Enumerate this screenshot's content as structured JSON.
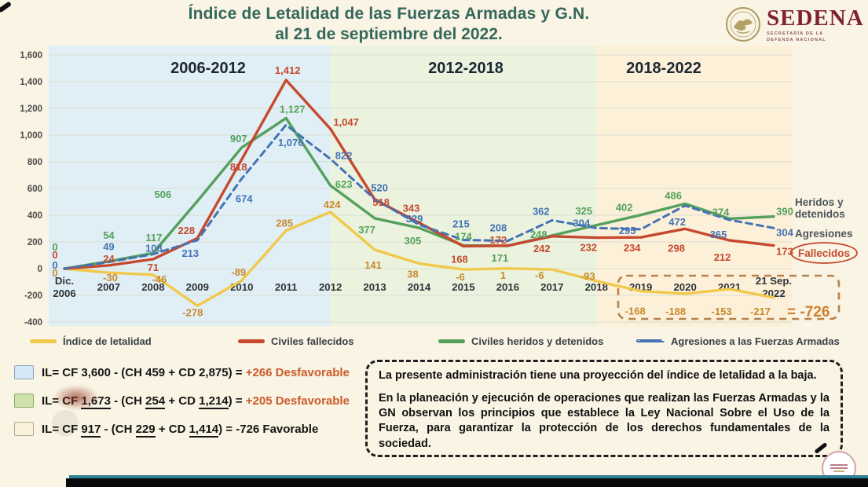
{
  "header": {
    "title_line1": "Índice de Letalidad de las Fuerzas Armadas y G.N.",
    "title_line2": "al 21 de septiembre del 2022.",
    "agency": {
      "name": "SEDENA",
      "subtitle_line1": "SECRETARÍA DE LA",
      "subtitle_line2": "DEFENSA NACIONAL"
    }
  },
  "chart_data": {
    "type": "line",
    "title": "Índice de Letalidad de las Fuerzas Armadas y G.N. al 21 de septiembre del 2022.",
    "x_labels": [
      [
        "Dic.",
        "2006"
      ],
      [
        "2007"
      ],
      [
        "2008"
      ],
      [
        "2009"
      ],
      [
        "2010"
      ],
      [
        "2011"
      ],
      [
        "2012"
      ],
      [
        "2013"
      ],
      [
        "2014"
      ],
      [
        "2015"
      ],
      [
        "2016"
      ],
      [
        "2017"
      ],
      [
        "2018"
      ],
      [
        "2019"
      ],
      [
        "2020"
      ],
      [
        "2021"
      ],
      [
        "21 Sep.",
        "2022"
      ]
    ],
    "ylim": [
      -400,
      1600
    ],
    "ytick_step": 200,
    "grid": true,
    "legend_position": "bottom",
    "periods": [
      {
        "label": "2006-2012",
        "color": "#e0eff5",
        "span": [
          0,
          6
        ]
      },
      {
        "label": "2012-2018",
        "color": "#ebf3df",
        "span": [
          6,
          12
        ]
      },
      {
        "label": "2018-2022",
        "color": "#fdf0d9",
        "span": [
          12,
          17
        ]
      }
    ],
    "series": [
      {
        "name": "Índice de letalidad",
        "color": "#f0c94c",
        "label_color": "#c9892e",
        "dashed": false,
        "values": [
          0,
          -30,
          -46,
          -278,
          -89,
          285,
          424,
          141,
          38,
          -6,
          1,
          -6,
          -93,
          -168,
          -188,
          -153,
          -217
        ]
      },
      {
        "name": "Civiles fallecidos",
        "color": "#c5492e",
        "label_color": "#c5492e",
        "dashed": false,
        "values": [
          0,
          24,
          71,
          228,
          818,
          1412,
          1047,
          518,
          343,
          168,
          172,
          242,
          232,
          234,
          298,
          212,
          173
        ]
      },
      {
        "name": "Civiles heridos y detenidos",
        "color": "#55a05c",
        "label_color": "#55a05c",
        "dashed": false,
        "values": [
          0,
          54,
          117,
          506,
          907,
          1127,
          623,
          377,
          305,
          174,
          171,
          248,
          325,
          402,
          486,
          374,
          390
        ]
      },
      {
        "name": "Agresiones a las Fuerzas Armadas",
        "color": "#4472b4",
        "label_color": "#4472b4",
        "dashed": true,
        "values": [
          0,
          49,
          108,
          213,
          674,
          1076,
          822,
          520,
          329,
          215,
          208,
          362,
          304,
          295,
          472,
          365,
          304
        ]
      }
    ],
    "right_annotations": [
      {
        "lines": [
          "Heridos y",
          "detenidos"
        ],
        "color": "#4f565c",
        "oval": false
      },
      {
        "lines": [
          "Agresiones"
        ],
        "color": "#4f565c",
        "oval": false
      },
      {
        "lines": [
          "Fallecidos"
        ],
        "color": "#c5492e",
        "oval": true
      }
    ],
    "summary_box": {
      "total_label": "= -726"
    }
  },
  "formulas": [
    {
      "swatch": "#d4e9f5",
      "swatch_border": "#85a7ba",
      "segments": [
        {
          "t": "IL= CF 3,600 - (CH 459 + CD 2,875) = "
        },
        {
          "t": "+266",
          "c": "accent"
        },
        {
          "t": "  Desfavorable",
          "c": "accent"
        }
      ]
    },
    {
      "swatch": "#cfe2ab",
      "swatch_border": "#8fa968",
      "segments": [
        {
          "t": "IL= CF "
        },
        {
          "t": "1,673",
          "u": true
        },
        {
          "t": " - (CH "
        },
        {
          "t": "254",
          "u": true
        },
        {
          "t": " + CD "
        },
        {
          "t": "1,214",
          "u": true
        },
        {
          "t": ") = "
        },
        {
          "t": "+205",
          "c": "accent"
        },
        {
          "t": "  Desfavorable",
          "c": "accent"
        }
      ]
    },
    {
      "swatch": "#f9f1dc",
      "swatch_border": "#b7ab8a",
      "segments": [
        {
          "t": "IL= CF "
        },
        {
          "t": "917",
          "u": true
        },
        {
          "t": " - (CH "
        },
        {
          "t": "229",
          "u": true
        },
        {
          "t": " + CD "
        },
        {
          "t": "1,414",
          "u": true
        },
        {
          "t": ") = -726 Favorable"
        }
      ]
    }
  ],
  "note_box": {
    "p1": "La presente administración tiene una proyección del índice de letalidad a la baja.",
    "p2": "En la planeación y ejecución de operaciones que realizan las Fuerzas Armadas y la GN observan los principios que establece la Ley Nacional Sobre el Uso de la Fuerza, para garantizar la protección de los derechos fundamentales de la sociedad."
  }
}
